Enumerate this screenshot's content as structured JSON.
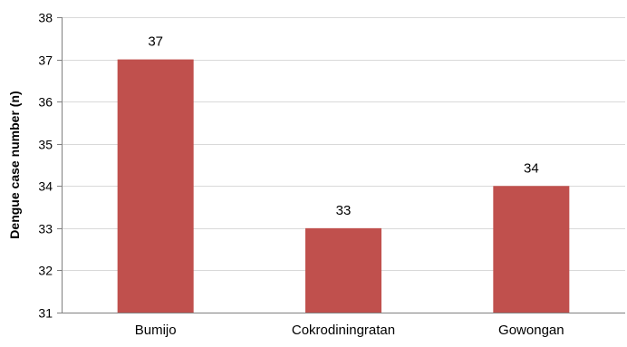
{
  "chart_data": {
    "type": "bar",
    "title": "",
    "xlabel": "",
    "ylabel": "Dengue case number (n)",
    "categories": [
      "Bumijo",
      "Cokrodiningratan",
      "Gowongan"
    ],
    "values": [
      37,
      33,
      34
    ],
    "data_labels": [
      "37",
      "33",
      "34"
    ],
    "ylim": [
      31,
      38
    ],
    "yticks": [
      "31",
      "32",
      "33",
      "34",
      "35",
      "36",
      "37",
      "38"
    ],
    "grid": true,
    "legend": "none",
    "bar_color": "#c0504d",
    "grid_color": "#d9d9d9",
    "axis_color": "#808080"
  }
}
